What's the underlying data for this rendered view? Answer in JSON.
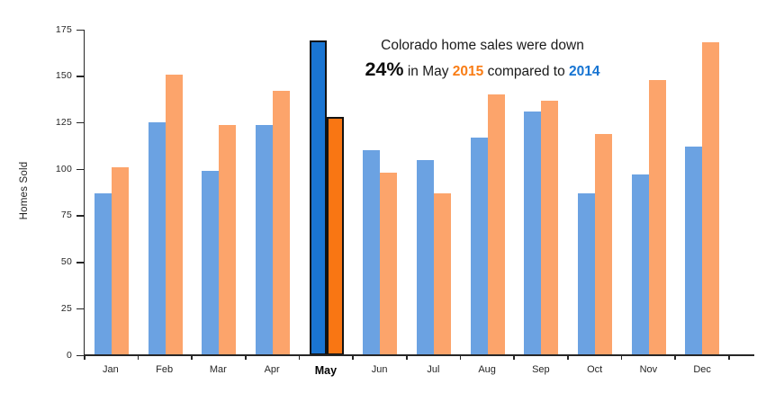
{
  "chart_data": {
    "type": "bar",
    "categories": [
      "Jan",
      "Feb",
      "Mar",
      "Apr",
      "May",
      "Jun",
      "Jul",
      "Aug",
      "Sep",
      "Oct",
      "Nov",
      "Dec"
    ],
    "series": [
      {
        "name": "2014",
        "color": "#6BA2E2",
        "highlight_color": "#1A75D2",
        "values": [
          87,
          125,
          99,
          124,
          169,
          110,
          105,
          117,
          131,
          87,
          97,
          112
        ]
      },
      {
        "name": "2015",
        "color": "#FCA46B",
        "highlight_color": "#F97613",
        "values": [
          101,
          151,
          124,
          142,
          128,
          98,
          87,
          140,
          137,
          119,
          148,
          168
        ]
      }
    ],
    "highlight_category": "May",
    "highlight_outline_color": "#121212",
    "ylabel": "Homes Sold",
    "xlabel": "",
    "ylim": [
      0,
      175
    ],
    "yticks": [
      0,
      25,
      50,
      75,
      100,
      125,
      150,
      175
    ],
    "grid": false,
    "legend_position": "none"
  },
  "annotation": {
    "line1": "Colorado home sales were down",
    "pct": "24%",
    "mid1": " in May ",
    "year_2015": "2015",
    "mid2": " compared to ",
    "year_2014": "2014",
    "orange_color": "#F97D16",
    "blue_color": "#1674D2"
  }
}
